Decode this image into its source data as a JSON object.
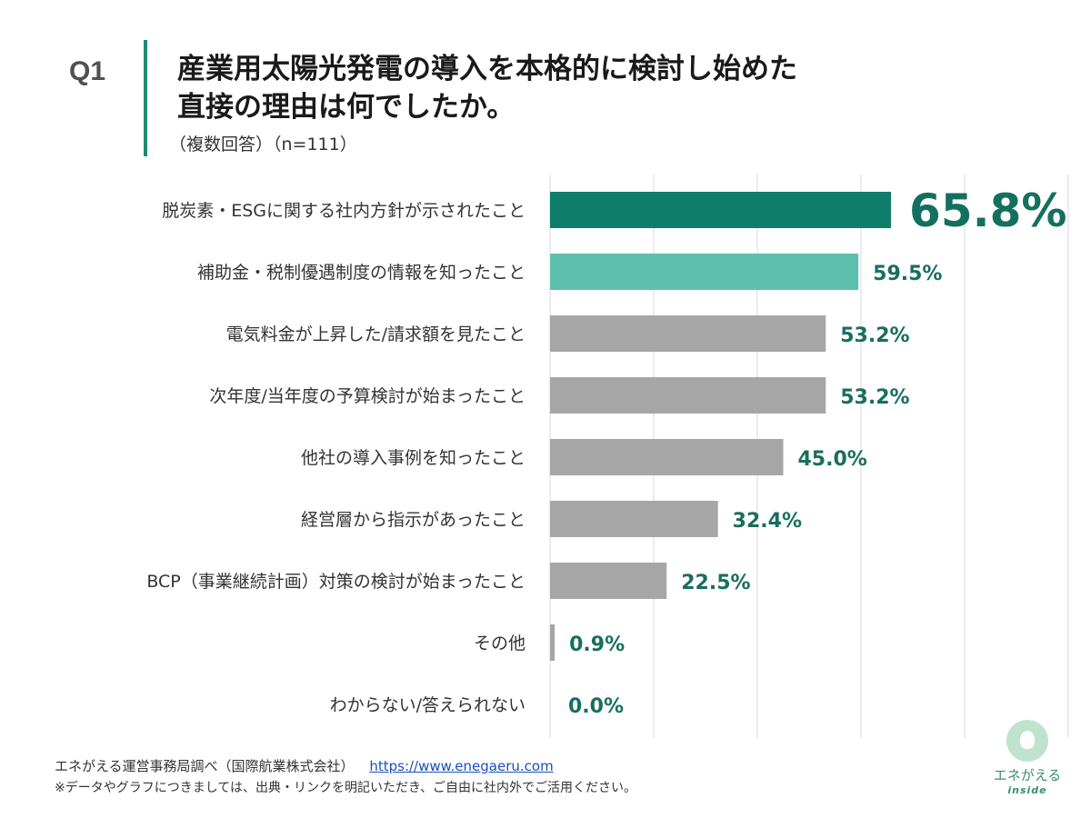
{
  "header": {
    "q_label": "Q1",
    "title_line1": "産業用太陽光発電の導入を本格的に検討し始めた",
    "title_line2": "直接の理由は何でしたか。",
    "subtitle": "（複数回答）（n=111）"
  },
  "chart_data": {
    "type": "bar",
    "orientation": "horizontal",
    "title": "",
    "xlabel": "",
    "ylabel": "",
    "xlim": [
      0,
      100
    ],
    "grid": true,
    "categories": [
      "脱炭素・ESGに関する社内方針が示されたこと",
      "補助金・税制優遇制度の情報を知ったこと",
      "電気料金が上昇した/請求額を見たこと",
      "次年度/当年度の予算検討が始まったこと",
      "他社の導入事例を知ったこと",
      "経営層から指示があったこと",
      "BCP（事業継続計画）対策の検討が始まったこと",
      "その他",
      "わからない/答えられない"
    ],
    "values": [
      65.8,
      59.5,
      53.2,
      53.2,
      45.0,
      32.4,
      22.5,
      0.9,
      0.0
    ],
    "value_labels": [
      "65.8%",
      "59.5%",
      "53.2%",
      "53.2%",
      "45.0%",
      "32.4%",
      "22.5%",
      "0.9%",
      "0.0%"
    ],
    "colors": [
      "#0f7d6b",
      "#5fbfad",
      "#a6a6a6",
      "#a6a6a6",
      "#a6a6a6",
      "#a6a6a6",
      "#a6a6a6",
      "#a6a6a6",
      "#a6a6a6"
    ],
    "label_color": "#1a6e5e",
    "highlight_index": 0
  },
  "footer": {
    "source": "エネがえる運営事務局調べ（国際航業株式会社）",
    "url": "https://www.enegaeru.com",
    "note": "※データやグラフにつきましては、出典・リンクを明記いただき、ご自由に社内外でご活用ください。"
  },
  "logo": {
    "name": "エネがえる",
    "sub": "inside"
  }
}
